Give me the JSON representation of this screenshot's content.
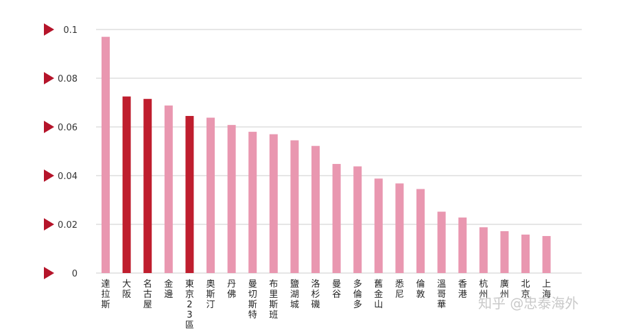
{
  "chart_data": {
    "type": "bar",
    "categories": [
      "達拉斯",
      "大阪",
      "名古屋",
      "金邊",
      "東京23區",
      "奧斯汀",
      "丹佛",
      "曼切斯特",
      "布里斯班",
      "鹽湖城",
      "洛杉磯",
      "曼谷",
      "多倫多",
      "舊金山",
      "悉尼",
      "倫敦",
      "溫哥華",
      "香港",
      "杭州",
      "廣州",
      "北京",
      "上海"
    ],
    "values": [
      0.097,
      0.0725,
      0.0715,
      0.0688,
      0.0645,
      0.0638,
      0.0608,
      0.058,
      0.057,
      0.0545,
      0.0522,
      0.0448,
      0.0438,
      0.0388,
      0.0368,
      0.0345,
      0.0252,
      0.0228,
      0.0188,
      0.0172,
      0.0158,
      0.0152
    ],
    "highlight": [
      false,
      true,
      true,
      false,
      true,
      false,
      false,
      false,
      false,
      false,
      false,
      false,
      false,
      false,
      false,
      false,
      false,
      false,
      false,
      false,
      false,
      false
    ],
    "yticks": [
      "0",
      "0.02",
      "0.04",
      "0.06",
      "0.08",
      "0.1"
    ],
    "ylim": [
      0,
      0.1
    ],
    "grid": true,
    "colors": {
      "bar": "#e997b0",
      "highlight": "#bf1e2e",
      "arrow": "#b5142a",
      "grid": "#cccccc"
    }
  },
  "watermark": "知乎 @忠泰海外"
}
